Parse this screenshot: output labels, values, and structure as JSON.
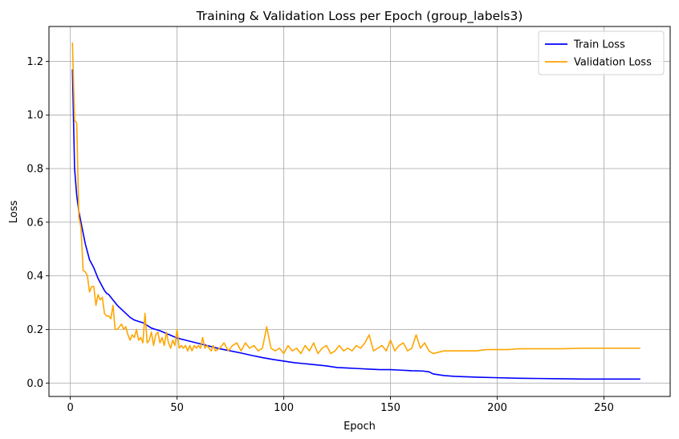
{
  "chart_data": {
    "type": "line",
    "title": "Training & Validation Loss per Epoch (group_labels3)",
    "xlabel": "Epoch",
    "ylabel": "Loss",
    "xlim": [
      -10,
      281
    ],
    "ylim": [
      -0.05,
      1.33
    ],
    "xticks": [
      0,
      50,
      100,
      150,
      200,
      250
    ],
    "yticks": [
      0.0,
      0.2,
      0.4,
      0.6,
      0.8,
      1.0,
      1.2
    ],
    "grid": true,
    "legend_position": "top-right",
    "series": [
      {
        "name": "Train Loss",
        "color": "#0000ff",
        "points": [
          [
            1,
            1.17
          ],
          [
            2,
            0.8
          ],
          [
            3,
            0.7
          ],
          [
            4,
            0.64
          ],
          [
            5,
            0.6
          ],
          [
            6,
            0.56
          ],
          [
            7,
            0.52
          ],
          [
            8,
            0.49
          ],
          [
            9,
            0.46
          ],
          [
            10,
            0.445
          ],
          [
            11,
            0.43
          ],
          [
            12,
            0.41
          ],
          [
            13,
            0.39
          ],
          [
            14,
            0.375
          ],
          [
            15,
            0.36
          ],
          [
            16,
            0.345
          ],
          [
            17,
            0.335
          ],
          [
            18,
            0.33
          ],
          [
            20,
            0.31
          ],
          [
            22,
            0.29
          ],
          [
            24,
            0.275
          ],
          [
            26,
            0.26
          ],
          [
            28,
            0.245
          ],
          [
            30,
            0.235
          ],
          [
            32,
            0.23
          ],
          [
            34,
            0.225
          ],
          [
            36,
            0.215
          ],
          [
            38,
            0.205
          ],
          [
            40,
            0.2
          ],
          [
            42,
            0.195
          ],
          [
            45,
            0.185
          ],
          [
            48,
            0.175
          ],
          [
            50,
            0.168
          ],
          [
            55,
            0.158
          ],
          [
            60,
            0.148
          ],
          [
            65,
            0.138
          ],
          [
            70,
            0.128
          ],
          [
            75,
            0.12
          ],
          [
            80,
            0.112
          ],
          [
            85,
            0.103
          ],
          [
            90,
            0.095
          ],
          [
            95,
            0.088
          ],
          [
            100,
            0.082
          ],
          [
            105,
            0.076
          ],
          [
            110,
            0.072
          ],
          [
            115,
            0.068
          ],
          [
            120,
            0.064
          ],
          [
            125,
            0.058
          ],
          [
            130,
            0.056
          ],
          [
            135,
            0.054
          ],
          [
            140,
            0.052
          ],
          [
            145,
            0.05
          ],
          [
            150,
            0.05
          ],
          [
            155,
            0.048
          ],
          [
            160,
            0.046
          ],
          [
            165,
            0.045
          ],
          [
            168,
            0.042
          ],
          [
            170,
            0.034
          ],
          [
            175,
            0.028
          ],
          [
            180,
            0.025
          ],
          [
            190,
            0.022
          ],
          [
            200,
            0.02
          ],
          [
            210,
            0.018
          ],
          [
            220,
            0.017
          ],
          [
            230,
            0.016
          ],
          [
            240,
            0.015
          ],
          [
            250,
            0.015
          ],
          [
            260,
            0.015
          ],
          [
            267,
            0.015
          ]
        ]
      },
      {
        "name": "Validation Loss",
        "color": "#ffa500",
        "points": [
          [
            1,
            1.27
          ],
          [
            2,
            0.98
          ],
          [
            3,
            0.97
          ],
          [
            4,
            0.62
          ],
          [
            5,
            0.58
          ],
          [
            6,
            0.42
          ],
          [
            7,
            0.415
          ],
          [
            8,
            0.4
          ],
          [
            9,
            0.34
          ],
          [
            10,
            0.36
          ],
          [
            11,
            0.36
          ],
          [
            12,
            0.29
          ],
          [
            13,
            0.33
          ],
          [
            14,
            0.31
          ],
          [
            15,
            0.32
          ],
          [
            16,
            0.26
          ],
          [
            17,
            0.25
          ],
          [
            18,
            0.25
          ],
          [
            19,
            0.24
          ],
          [
            20,
            0.29
          ],
          [
            21,
            0.2
          ],
          [
            22,
            0.2
          ],
          [
            23,
            0.21
          ],
          [
            24,
            0.22
          ],
          [
            25,
            0.2
          ],
          [
            26,
            0.21
          ],
          [
            27,
            0.18
          ],
          [
            28,
            0.16
          ],
          [
            29,
            0.18
          ],
          [
            30,
            0.17
          ],
          [
            31,
            0.2
          ],
          [
            32,
            0.16
          ],
          [
            33,
            0.17
          ],
          [
            34,
            0.15
          ],
          [
            35,
            0.26
          ],
          [
            36,
            0.15
          ],
          [
            37,
            0.16
          ],
          [
            38,
            0.19
          ],
          [
            39,
            0.14
          ],
          [
            40,
            0.18
          ],
          [
            41,
            0.19
          ],
          [
            42,
            0.15
          ],
          [
            43,
            0.17
          ],
          [
            44,
            0.14
          ],
          [
            45,
            0.19
          ],
          [
            46,
            0.15
          ],
          [
            47,
            0.13
          ],
          [
            48,
            0.16
          ],
          [
            49,
            0.14
          ],
          [
            50,
            0.2
          ],
          [
            51,
            0.13
          ],
          [
            52,
            0.14
          ],
          [
            53,
            0.13
          ],
          [
            54,
            0.14
          ],
          [
            55,
            0.12
          ],
          [
            56,
            0.14
          ],
          [
            57,
            0.12
          ],
          [
            58,
            0.14
          ],
          [
            59,
            0.13
          ],
          [
            60,
            0.14
          ],
          [
            61,
            0.13
          ],
          [
            62,
            0.17
          ],
          [
            63,
            0.13
          ],
          [
            64,
            0.14
          ],
          [
            65,
            0.13
          ],
          [
            66,
            0.12
          ],
          [
            67,
            0.14
          ],
          [
            68,
            0.12
          ],
          [
            70,
            0.13
          ],
          [
            72,
            0.15
          ],
          [
            74,
            0.12
          ],
          [
            76,
            0.14
          ],
          [
            78,
            0.15
          ],
          [
            80,
            0.12
          ],
          [
            82,
            0.15
          ],
          [
            84,
            0.13
          ],
          [
            86,
            0.14
          ],
          [
            88,
            0.12
          ],
          [
            90,
            0.13
          ],
          [
            92,
            0.21
          ],
          [
            94,
            0.13
          ],
          [
            96,
            0.12
          ],
          [
            98,
            0.13
          ],
          [
            100,
            0.11
          ],
          [
            102,
            0.14
          ],
          [
            104,
            0.12
          ],
          [
            106,
            0.13
          ],
          [
            108,
            0.11
          ],
          [
            110,
            0.14
          ],
          [
            112,
            0.12
          ],
          [
            114,
            0.15
          ],
          [
            116,
            0.11
          ],
          [
            118,
            0.13
          ],
          [
            120,
            0.14
          ],
          [
            122,
            0.11
          ],
          [
            124,
            0.12
          ],
          [
            126,
            0.14
          ],
          [
            128,
            0.12
          ],
          [
            130,
            0.13
          ],
          [
            132,
            0.12
          ],
          [
            134,
            0.14
          ],
          [
            136,
            0.13
          ],
          [
            138,
            0.15
          ],
          [
            140,
            0.18
          ],
          [
            142,
            0.12
          ],
          [
            144,
            0.13
          ],
          [
            146,
            0.14
          ],
          [
            148,
            0.12
          ],
          [
            150,
            0.16
          ],
          [
            152,
            0.12
          ],
          [
            154,
            0.14
          ],
          [
            156,
            0.15
          ],
          [
            158,
            0.12
          ],
          [
            160,
            0.13
          ],
          [
            162,
            0.18
          ],
          [
            164,
            0.13
          ],
          [
            166,
            0.15
          ],
          [
            168,
            0.12
          ],
          [
            170,
            0.11
          ],
          [
            175,
            0.12
          ],
          [
            180,
            0.12
          ],
          [
            185,
            0.12
          ],
          [
            190,
            0.12
          ],
          [
            195,
            0.125
          ],
          [
            200,
            0.125
          ],
          [
            205,
            0.125
          ],
          [
            210,
            0.128
          ],
          [
            215,
            0.128
          ],
          [
            220,
            0.128
          ],
          [
            230,
            0.128
          ],
          [
            240,
            0.13
          ],
          [
            250,
            0.13
          ],
          [
            260,
            0.13
          ],
          [
            267,
            0.13
          ]
        ]
      }
    ]
  }
}
